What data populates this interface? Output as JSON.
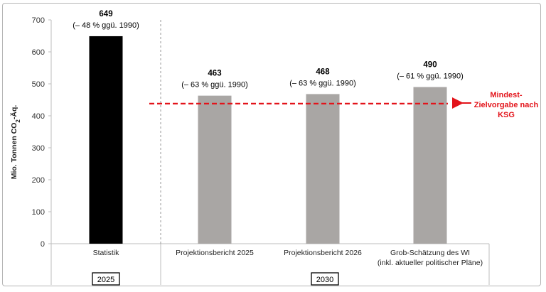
{
  "chart_data": {
    "type": "bar",
    "ylabel_main": "Mio. Tonnen CO",
    "ylabel_sub": "2",
    "ylabel_tail": "-Äq.",
    "ylim": [
      0,
      700
    ],
    "yticks": [
      0,
      100,
      200,
      300,
      400,
      500,
      600,
      700
    ],
    "categories": [
      "Statistik",
      "Projektionsbericht 2025",
      "Projektionsbericht 2026",
      "Grob-Schätzung des WI"
    ],
    "category_sublabels": [
      "",
      "",
      "",
      "(inkl. aktueller politischer Pläne)"
    ],
    "values": [
      649,
      463,
      468,
      490
    ],
    "value_labels": [
      "649",
      "463",
      "468",
      "490"
    ],
    "value_sublabels": [
      "(– 48 % ggü. 1990)",
      "(– 63 % ggü. 1990)",
      "(– 63 % ggü. 1990)",
      "(– 61 % ggü. 1990)"
    ],
    "bar_colors": [
      "#000000",
      "#a9a6a4",
      "#a9a6a4",
      "#a9a6a4"
    ],
    "year_groups": [
      "2025",
      "2030"
    ],
    "target_line": {
      "value": 438,
      "color": "#e3141b",
      "label_lines": [
        "Mindest-",
        "Zielvorgabe nach",
        "KSG"
      ]
    },
    "grid": false
  }
}
